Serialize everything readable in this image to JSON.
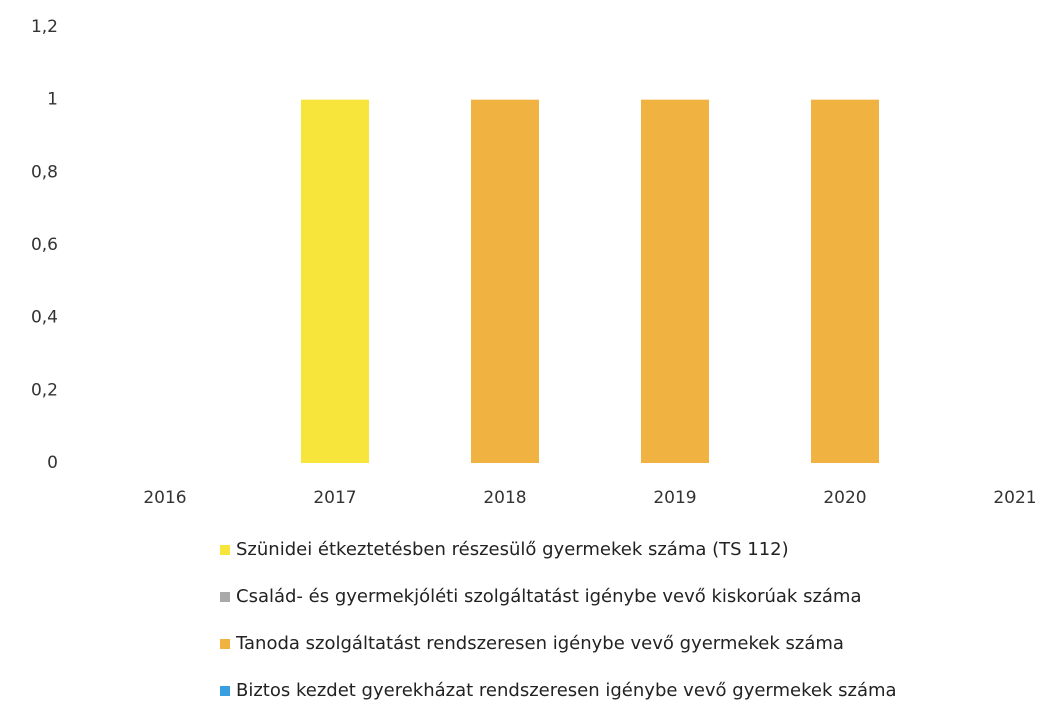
{
  "chart_data": {
    "type": "stacked_bar",
    "categories": [
      "2016",
      "2017",
      "2018",
      "2019",
      "2020",
      "2021"
    ],
    "series": [
      {
        "name": "Szünidei étkeztetésben részesülő gyermekek száma (TS 112)",
        "color": "#f7e53c",
        "values": [
          0,
          1,
          0,
          0,
          0,
          0
        ]
      },
      {
        "name": "Család- és gyermekjóléti szolgáltatást igénybe vevő kiskorúak száma",
        "color": "#a9a9a9",
        "values": [
          0,
          0,
          0,
          0,
          0,
          0
        ]
      },
      {
        "name": "Tanoda szolgáltatást rendszeresen igénybe vevő gyermekek száma",
        "color": "#f0b240",
        "values": [
          0,
          0,
          1,
          1,
          1,
          0
        ]
      },
      {
        "name": "Biztos kezdet gyerekházat rendszeresen igénybe vevő gyermekek száma",
        "color": "#3a9fe0",
        "values": [
          0,
          0,
          0,
          0,
          0,
          0
        ]
      }
    ],
    "ylim": [
      0,
      1.2
    ],
    "yticks": [
      0,
      {
        "value": 0.2,
        "label": "0,2"
      },
      {
        "value": 0.4,
        "label": "0,4"
      },
      {
        "value": 0.6,
        "label": "0,6"
      },
      {
        "value": 0.8,
        "label": "0,8"
      },
      1,
      {
        "value": 1.2,
        "label": "1,2"
      }
    ],
    "grid": false,
    "legend": "bottom"
  }
}
